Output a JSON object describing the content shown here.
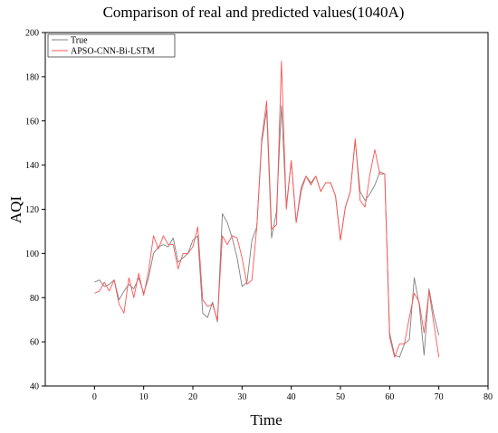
{
  "chart_data": {
    "type": "line",
    "title": "Comparison of real and predicted values(1040A)",
    "xlabel": "Time",
    "ylabel": "AQI",
    "xlim": [
      -10,
      80
    ],
    "ylim": [
      40,
      200
    ],
    "xticks": [
      0,
      10,
      20,
      30,
      40,
      50,
      60,
      70,
      80
    ],
    "yticks": [
      40,
      60,
      80,
      100,
      120,
      140,
      160,
      180,
      200
    ],
    "grid": false,
    "legend_position": "top-left",
    "series": [
      {
        "name": "True",
        "color": "#808080",
        "values": [
          87,
          88,
          85,
          86,
          88,
          79,
          83,
          86,
          84,
          89,
          82,
          89,
          100,
          103,
          104,
          103,
          107,
          96,
          98,
          100,
          106,
          108,
          73,
          71,
          78,
          69,
          118,
          114,
          107,
          98,
          85,
          87,
          106,
          112,
          150,
          165,
          107,
          119,
          167,
          121,
          142,
          114,
          130,
          135,
          132,
          135,
          128,
          132,
          132,
          126,
          106,
          121,
          128,
          151,
          128,
          124,
          127,
          131,
          137,
          136,
          64,
          54,
          53,
          59,
          61,
          89,
          77,
          54,
          84,
          72,
          63
        ]
      },
      {
        "name": "APSO-CNN-Bi-LSTM",
        "color": "#ff5555",
        "values": [
          82,
          83,
          87,
          83,
          88,
          77,
          73,
          89,
          80,
          91,
          81,
          92,
          108,
          102,
          108,
          104,
          104,
          93,
          100,
          100,
          103,
          112,
          79,
          76,
          77,
          70,
          108,
          104,
          108,
          107,
          98,
          86,
          88,
          112,
          152,
          169,
          111,
          113,
          187,
          120,
          142,
          114,
          128,
          135,
          131,
          135,
          128,
          132,
          132,
          126,
          106,
          121,
          128,
          152,
          124,
          121,
          136,
          147,
          136,
          136,
          62,
          53,
          59,
          59,
          71,
          82,
          78,
          64,
          83,
          68,
          53
        ]
      }
    ]
  }
}
